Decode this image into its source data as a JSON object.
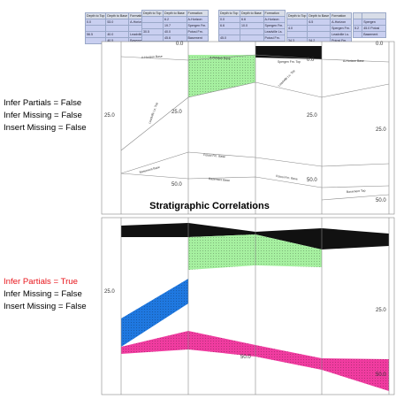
{
  "headers": [
    "Depth to Top",
    "Depth to Base",
    "Formation"
  ],
  "wells": [
    {
      "rows": [
        [
          "0.0",
          "53.0",
          "A-Horizon"
        ],
        [
          "",
          "",
          ""
        ],
        [
          "56.5",
          "40.0",
          "Leadville Ls."
        ],
        [
          "",
          "40.5",
          "Basement"
        ]
      ]
    },
    {
      "rows": [
        [
          "",
          "6.2",
          "A-Horizon"
        ],
        [
          "",
          "19.7",
          "Spergen Fm."
        ],
        [
          "30.5",
          "40.0",
          "Potosi Fm."
        ],
        [
          "",
          "45.6",
          "Basement"
        ]
      ]
    },
    {
      "rows": [
        [
          "0.0",
          "6.6",
          "A-Horizon"
        ],
        [
          "6.6",
          "10.0",
          "Spergen Fm."
        ],
        [
          "",
          "",
          "Leadville Ls."
        ],
        [
          "45.0",
          "",
          "Potosi Fm."
        ]
      ]
    },
    {
      "rows": [
        [
          "",
          "6.5",
          "A-Horizon"
        ],
        [
          "4.0",
          "",
          "Spergen Fm."
        ],
        [
          "",
          "",
          "Leadville Ls."
        ],
        [
          "34.3",
          "54.2",
          "Potosi Fm."
        ]
      ]
    },
    {
      "rows": [
        [
          "",
          ""
        ],
        [
          "",
          "Spergen"
        ],
        [
          "5.2",
          "45.0 Potosi"
        ],
        [
          "",
          "Basement"
        ]
      ]
    }
  ],
  "labels_top": [
    "Infer Partials = False",
    "Infer Missing = False",
    "Insert Missing = False"
  ],
  "labels_bottom": [
    "Infer Partials = True",
    "Infer Missing = False",
    "Insert Missing = False"
  ],
  "section_title": "Stratigraphic Correlations",
  "top_panel": {
    "depth_ticks_left": [
      "0.0",
      "25.0"
    ],
    "depth_ticks_mid": [
      "0.0",
      "25.0",
      "50.0"
    ],
    "depth_ticks_right": [
      "0.0",
      "25.0",
      "50.0"
    ],
    "formation_labels": [
      "A-Horizon Base",
      "A-Horizon Base",
      "Spergen Fm. Top",
      "A-Horizon Base",
      "Leadville Ls. Top",
      "Leadville Ls. Top",
      "Basement Base",
      "Potosi Fm. Base",
      "Basement Base",
      "Potosi Fm. Base",
      "Basement Top"
    ]
  },
  "bottom_panel": {
    "depth_ticks_left": [
      "25.0"
    ],
    "depth_ticks_mid": [
      "50.0"
    ],
    "depth_ticks_right": [
      "25.0",
      "50.0"
    ]
  },
  "colors": {
    "black_layer": "#111111",
    "green_layer": "#a6f0a0",
    "blue_layer": "#1f78e0",
    "pink_layer": "#f03ca0",
    "red_label": "#e8151b"
  }
}
